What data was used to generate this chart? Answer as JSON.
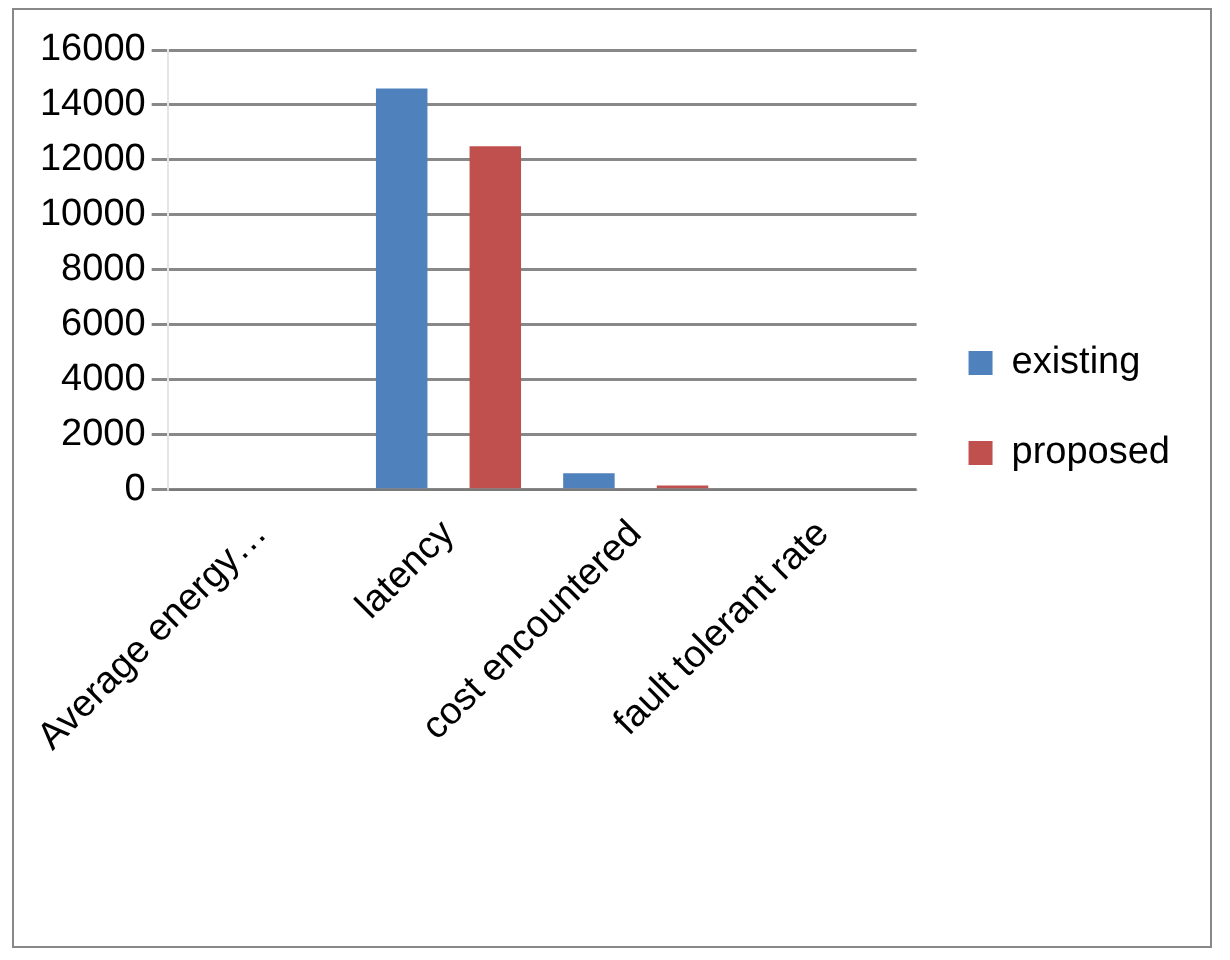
{
  "chart_data": {
    "type": "bar",
    "categories": [
      "Average energy…",
      "latency",
      "cost encountered",
      "fault tolerant rate"
    ],
    "series": [
      {
        "name": "existing",
        "color": "#4f81bd",
        "values": [
          null,
          14600,
          600,
          null
        ]
      },
      {
        "name": "proposed",
        "color": "#c0504d",
        "values": [
          null,
          12500,
          150,
          null
        ]
      }
    ],
    "ylim": [
      0,
      16000
    ],
    "yticks": [
      0,
      2000,
      4000,
      6000,
      8000,
      10000,
      12000,
      14000,
      16000
    ],
    "grid": "y",
    "legend": "right"
  }
}
